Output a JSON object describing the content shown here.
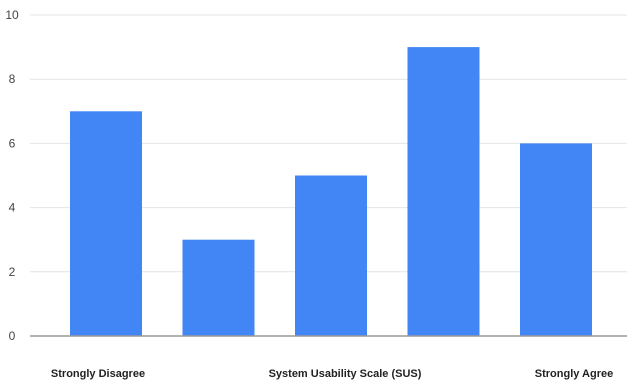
{
  "chart_data": {
    "type": "bar",
    "categories": [
      "",
      "",
      "",
      "",
      ""
    ],
    "values": [
      7,
      3,
      5,
      9,
      6
    ],
    "ylim": [
      0,
      10
    ],
    "yticks": [
      "0",
      "2",
      "4",
      "6",
      "8",
      "10"
    ],
    "grid": true,
    "legend": "none",
    "bar_color": "#4285f4",
    "x_captions": {
      "left": "Strongly Disagree",
      "center": "System Usability Scale (SUS)",
      "right": "Strongly Agree"
    }
  }
}
